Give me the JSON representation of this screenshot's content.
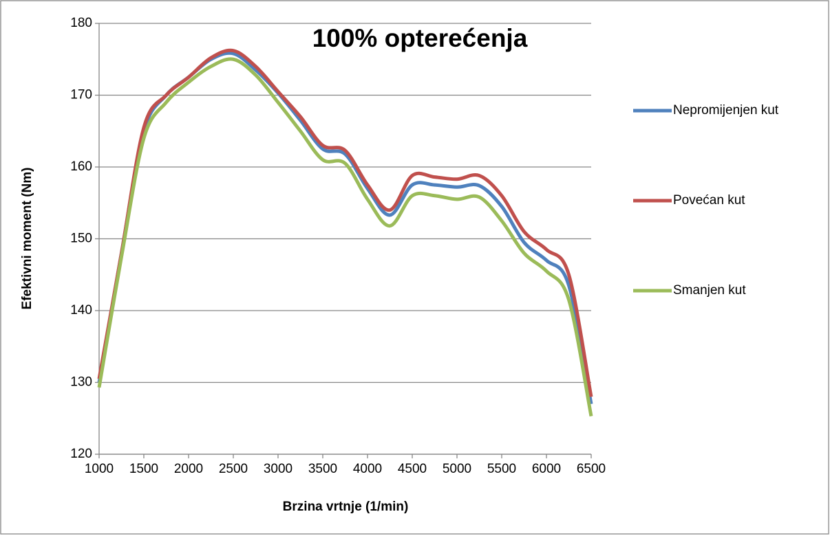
{
  "chart_data": {
    "type": "line",
    "title": "100% opterećenja",
    "x_label": "Brzina vrtnje (1/min)",
    "y_label": "Efektivni moment (Nm)",
    "x": [
      1000,
      1250,
      1500,
      1750,
      2000,
      2250,
      2500,
      2750,
      3000,
      3250,
      3500,
      3750,
      4000,
      4250,
      4500,
      4750,
      5000,
      5250,
      5500,
      5750,
      6000,
      6250,
      6500
    ],
    "series": [
      {
        "name": "Nepromijenjen kut",
        "color": "#4f81bd",
        "values": [
          130,
          148,
          165,
          170,
          172.5,
          175,
          175.8,
          173.5,
          170.3,
          166.5,
          162.5,
          161.8,
          157,
          153.3,
          157.5,
          157.5,
          157.2,
          157.4,
          154.5,
          149.5,
          147,
          143.5,
          127
        ]
      },
      {
        "name": "Povećan kut",
        "color": "#c0504d",
        "values": [
          130.5,
          148,
          165.5,
          170,
          172.5,
          175.2,
          176.2,
          174,
          170.5,
          167,
          163,
          162.3,
          157.5,
          154,
          158.8,
          158.6,
          158.3,
          158.8,
          156,
          151,
          148.5,
          145,
          128
        ]
      },
      {
        "name": "Smanjen kut",
        "color": "#9bbb59",
        "values": [
          129.3,
          147.5,
          164,
          169,
          171.8,
          174,
          175,
          172.8,
          169,
          165,
          161,
          160.5,
          155.5,
          151.8,
          156,
          156,
          155.5,
          155.8,
          152.5,
          148,
          145.5,
          141.5,
          125.3
        ]
      }
    ],
    "xlim": [
      1000,
      6500
    ],
    "xticks": [
      1000,
      1500,
      2000,
      2500,
      3000,
      3500,
      4000,
      4500,
      5000,
      5500,
      6000,
      6500
    ],
    "ylim": [
      120,
      180
    ],
    "yticks": [
      120,
      130,
      140,
      150,
      160,
      170,
      180
    ],
    "grid": true,
    "legend": "right"
  }
}
